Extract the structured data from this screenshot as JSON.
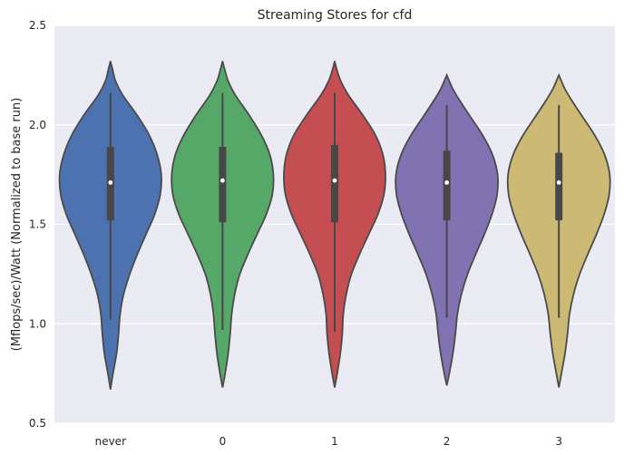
{
  "chart_data": {
    "type": "violin",
    "title": "Streaming Stores for cfd",
    "xlabel": "",
    "ylabel": "(Mflops/sec)/Watt (Normalized to base run)",
    "ylim": [
      0.5,
      2.5
    ],
    "yticks": [
      "0.5",
      "1.0",
      "1.5",
      "2.0",
      "2.5"
    ],
    "grid": true,
    "legend": "none",
    "categories": [
      "never",
      "0",
      "1",
      "2",
      "3"
    ],
    "colors": [
      "#4c72b0",
      "#55a868",
      "#c44e52",
      "#8172b2",
      "#ccb974"
    ],
    "series": [
      {
        "category": "never",
        "min": 0.67,
        "max": 2.32,
        "whisker_low": 1.02,
        "whisker_high": 2.16,
        "q1": 1.52,
        "median": 1.71,
        "q3": 1.89,
        "profile": [
          [
            0.67,
            0.0
          ],
          [
            0.75,
            0.05
          ],
          [
            0.85,
            0.12
          ],
          [
            0.95,
            0.16
          ],
          [
            1.05,
            0.19
          ],
          [
            1.15,
            0.26
          ],
          [
            1.25,
            0.38
          ],
          [
            1.35,
            0.53
          ],
          [
            1.45,
            0.7
          ],
          [
            1.55,
            0.87
          ],
          [
            1.65,
            0.98
          ],
          [
            1.75,
            1.0
          ],
          [
            1.85,
            0.92
          ],
          [
            1.95,
            0.76
          ],
          [
            2.05,
            0.52
          ],
          [
            2.15,
            0.24
          ],
          [
            2.22,
            0.1
          ],
          [
            2.28,
            0.04
          ],
          [
            2.32,
            0.0
          ]
        ]
      },
      {
        "category": "0",
        "min": 0.68,
        "max": 2.32,
        "whisker_low": 0.97,
        "whisker_high": 2.16,
        "q1": 1.51,
        "median": 1.72,
        "q3": 1.89,
        "profile": [
          [
            0.68,
            0.0
          ],
          [
            0.75,
            0.05
          ],
          [
            0.85,
            0.11
          ],
          [
            0.95,
            0.15
          ],
          [
            1.05,
            0.18
          ],
          [
            1.15,
            0.24
          ],
          [
            1.25,
            0.34
          ],
          [
            1.35,
            0.5
          ],
          [
            1.45,
            0.68
          ],
          [
            1.55,
            0.86
          ],
          [
            1.65,
            0.98
          ],
          [
            1.75,
            1.0
          ],
          [
            1.85,
            0.93
          ],
          [
            1.95,
            0.76
          ],
          [
            2.05,
            0.52
          ],
          [
            2.15,
            0.25
          ],
          [
            2.22,
            0.11
          ],
          [
            2.28,
            0.04
          ],
          [
            2.32,
            0.0
          ]
        ]
      },
      {
        "category": "1",
        "min": 0.68,
        "max": 2.32,
        "whisker_low": 0.96,
        "whisker_high": 2.16,
        "q1": 1.51,
        "median": 1.72,
        "q3": 1.9,
        "profile": [
          [
            0.68,
            0.0
          ],
          [
            0.75,
            0.05
          ],
          [
            0.85,
            0.11
          ],
          [
            0.95,
            0.15
          ],
          [
            1.05,
            0.17
          ],
          [
            1.15,
            0.23
          ],
          [
            1.25,
            0.33
          ],
          [
            1.35,
            0.49
          ],
          [
            1.45,
            0.67
          ],
          [
            1.55,
            0.85
          ],
          [
            1.65,
            0.97
          ],
          [
            1.75,
            1.0
          ],
          [
            1.85,
            0.95
          ],
          [
            1.95,
            0.8
          ],
          [
            2.05,
            0.55
          ],
          [
            2.15,
            0.27
          ],
          [
            2.22,
            0.12
          ],
          [
            2.28,
            0.04
          ],
          [
            2.32,
            0.0
          ]
        ]
      },
      {
        "category": "2",
        "min": 0.69,
        "max": 2.25,
        "whisker_low": 1.03,
        "whisker_high": 2.1,
        "q1": 1.52,
        "median": 1.71,
        "q3": 1.87,
        "profile": [
          [
            0.69,
            0.0
          ],
          [
            0.75,
            0.05
          ],
          [
            0.85,
            0.12
          ],
          [
            0.95,
            0.17
          ],
          [
            1.05,
            0.21
          ],
          [
            1.15,
            0.29
          ],
          [
            1.25,
            0.41
          ],
          [
            1.35,
            0.57
          ],
          [
            1.45,
            0.74
          ],
          [
            1.55,
            0.89
          ],
          [
            1.65,
            0.99
          ],
          [
            1.75,
            1.0
          ],
          [
            1.85,
            0.9
          ],
          [
            1.95,
            0.7
          ],
          [
            2.05,
            0.44
          ],
          [
            2.12,
            0.26
          ],
          [
            2.18,
            0.12
          ],
          [
            2.22,
            0.05
          ],
          [
            2.25,
            0.0
          ]
        ]
      },
      {
        "category": "3",
        "min": 0.68,
        "max": 2.25,
        "whisker_low": 1.03,
        "whisker_high": 2.1,
        "q1": 1.52,
        "median": 1.71,
        "q3": 1.86,
        "profile": [
          [
            0.68,
            0.0
          ],
          [
            0.75,
            0.05
          ],
          [
            0.85,
            0.12
          ],
          [
            0.95,
            0.17
          ],
          [
            1.05,
            0.21
          ],
          [
            1.15,
            0.29
          ],
          [
            1.25,
            0.41
          ],
          [
            1.35,
            0.57
          ],
          [
            1.45,
            0.74
          ],
          [
            1.55,
            0.89
          ],
          [
            1.65,
            0.99
          ],
          [
            1.75,
            1.0
          ],
          [
            1.85,
            0.9
          ],
          [
            1.95,
            0.7
          ],
          [
            2.05,
            0.44
          ],
          [
            2.12,
            0.26
          ],
          [
            2.18,
            0.12
          ],
          [
            2.22,
            0.05
          ],
          [
            2.25,
            0.0
          ]
        ]
      }
    ]
  }
}
